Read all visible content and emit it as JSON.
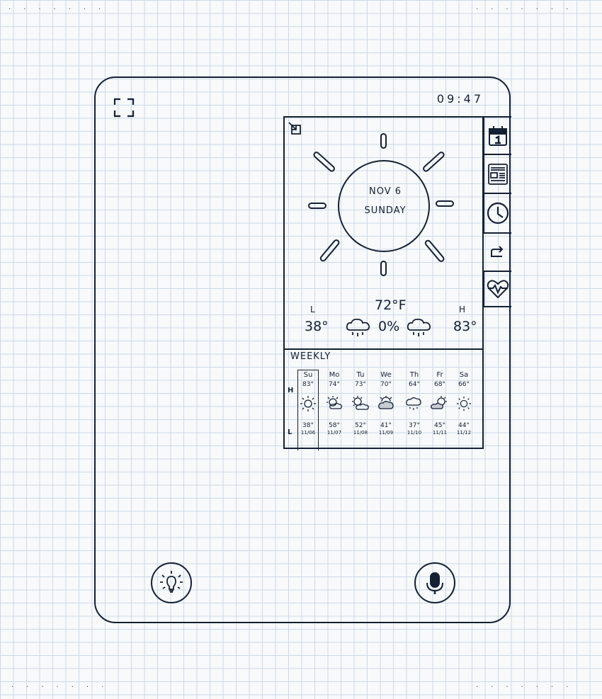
{
  "status": {
    "time": "09:47"
  },
  "weather": {
    "date": "NOV 6",
    "weekday": "SUNDAY",
    "current_temp": "72°F",
    "low_label": "L",
    "low_temp": "38°",
    "high_label": "H",
    "high_temp": "83°",
    "precip": "0%"
  },
  "weekly": {
    "title": "WEEKLY",
    "high_row_label": "H",
    "low_row_label": "L",
    "days": [
      {
        "name": "Su",
        "high": "83°",
        "low": "38°",
        "date": "11/06",
        "icon": "sunny-icon"
      },
      {
        "name": "Mo",
        "high": "74°",
        "low": "58°",
        "date": "11/07",
        "icon": "partly-sunny-icon"
      },
      {
        "name": "Tu",
        "high": "73°",
        "low": "52°",
        "date": "11/08",
        "icon": "partly-cloudy-icon"
      },
      {
        "name": "We",
        "high": "70°",
        "low": "41°",
        "date": "11/09",
        "icon": "cloudy-sun-icon"
      },
      {
        "name": "Th",
        "high": "64°",
        "low": "37°",
        "date": "11/10",
        "icon": "rain-icon"
      },
      {
        "name": "Fr",
        "high": "68°",
        "low": "45°",
        "date": "11/11",
        "icon": "partly-cloudy-icon"
      },
      {
        "name": "Sa",
        "high": "66°",
        "low": "44°",
        "date": "11/12",
        "icon": "sunny-icon"
      }
    ]
  },
  "side_tabs": [
    "calendar-icon",
    "news-icon",
    "clock-icon",
    "return-icon",
    "health-icon"
  ],
  "buttons": [
    "lightbulb-icon",
    "microphone-icon"
  ]
}
